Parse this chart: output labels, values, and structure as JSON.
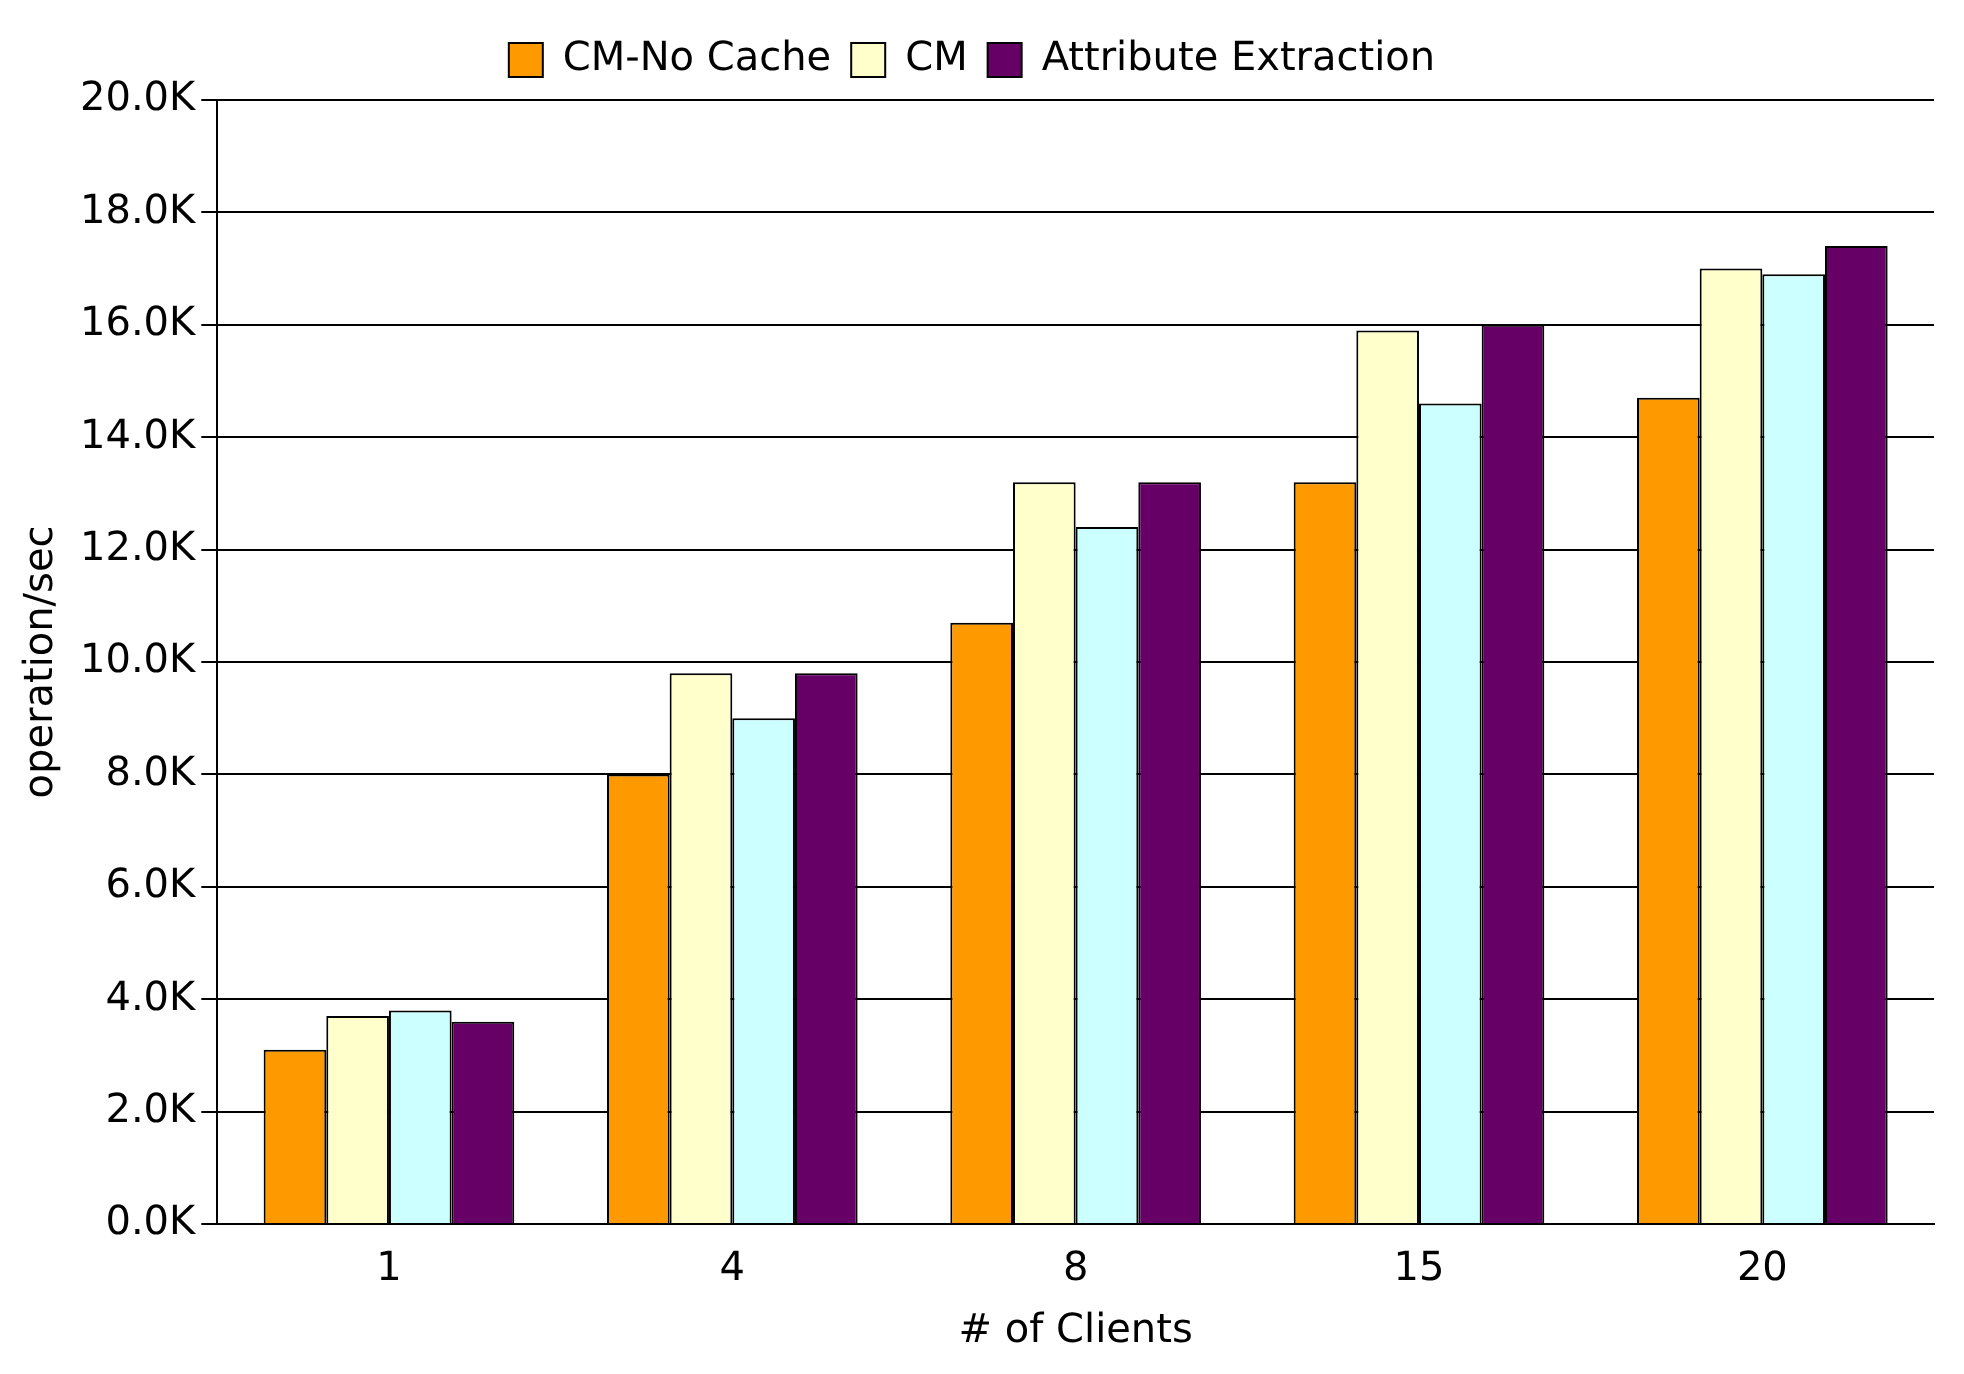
{
  "chart_data": {
    "type": "bar",
    "xlabel": "# of Clients",
    "ylabel": "operation/sec",
    "categories": [
      "1",
      "4",
      "8",
      "15",
      "20"
    ],
    "series": [
      {
        "name": "CM-No Cache",
        "color": "#ff9900",
        "values": [
          3100,
          8000,
          10700,
          13200,
          14700
        ]
      },
      {
        "name": "CM",
        "color": "#ffffcc",
        "values": [
          3700,
          9800,
          13200,
          15900,
          17000
        ]
      },
      {
        "color": "#ccffff",
        "values": [
          3800,
          9000,
          12400,
          14600,
          16900
        ]
      },
      {
        "name": "Attribute Extraction",
        "color": "#660066",
        "values": [
          3600,
          9800,
          13200,
          16000,
          17400
        ]
      }
    ],
    "ylim": [
      0,
      20000
    ],
    "yticks": [
      {
        "value": 0,
        "label": "0.0K"
      },
      {
        "value": 2000,
        "label": "2.0K"
      },
      {
        "value": 4000,
        "label": "4.0K"
      },
      {
        "value": 6000,
        "label": "6.0K"
      },
      {
        "value": 8000,
        "label": "8.0K"
      },
      {
        "value": 10000,
        "label": "10.0K"
      },
      {
        "value": 12000,
        "label": "12.0K"
      },
      {
        "value": 14000,
        "label": "14.0K"
      },
      {
        "value": 16000,
        "label": "16.0K"
      },
      {
        "value": 18000,
        "label": "18.0K"
      },
      {
        "value": 20000,
        "label": "20.0K"
      }
    ],
    "grid": "y",
    "legend": "top"
  }
}
